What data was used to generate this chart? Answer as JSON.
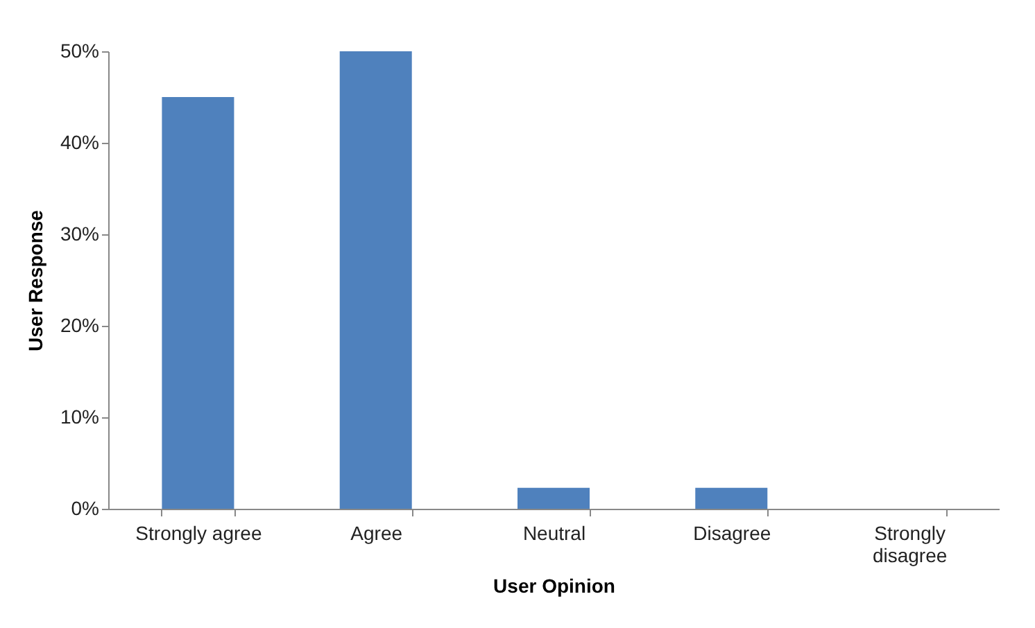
{
  "chart_data": {
    "type": "bar",
    "xlabel": "User Opinion",
    "ylabel": "User Response",
    "categories": [
      "Strongly agree",
      "Agree",
      "Neutral",
      "Disagree",
      "Strongly disagree"
    ],
    "values": [
      45,
      50,
      2.3,
      2.3,
      0
    ],
    "color": "#4f81bd",
    "ylim": [
      0,
      50
    ],
    "yticks": [
      {
        "value": 0,
        "label": "0%"
      },
      {
        "value": 10,
        "label": "10%"
      },
      {
        "value": 20,
        "label": "20%"
      },
      {
        "value": 30,
        "label": "30%"
      },
      {
        "value": 40,
        "label": "40%"
      },
      {
        "value": 50,
        "label": "50%"
      }
    ],
    "grid": false
  }
}
